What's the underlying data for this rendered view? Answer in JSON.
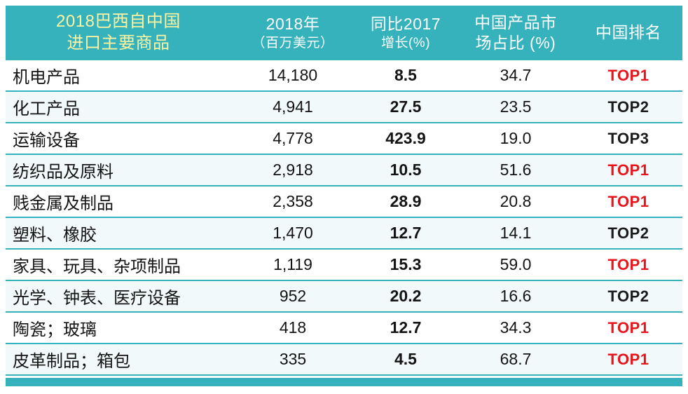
{
  "title": "2018巴西自中国进口主要商品",
  "colors": {
    "teal": "#36b2bd",
    "stripe": "#f1f9fa",
    "header_first_col_text": "#fdf3a0",
    "rank_red": "#e8151c",
    "rank_dark": "#1a1a1a"
  },
  "table": {
    "headers": [
      {
        "line1": "2018巴西自中国",
        "line2": "进口主要商品"
      },
      {
        "line1": "2018年",
        "line2": "（百万美元）"
      },
      {
        "line1": "同比2017",
        "line2": "增长(%)"
      },
      {
        "line1": "中国产品市",
        "line2": "场占比 (%)"
      },
      {
        "line1": "中国排名",
        "line2": ""
      }
    ],
    "rows": [
      {
        "name": "机电产品",
        "value_2018": "14,180",
        "yoy": "8.5",
        "share": "34.7",
        "rank": "TOP1",
        "rank_color": "#e8151c"
      },
      {
        "name": "化工产品",
        "value_2018": "4,941",
        "yoy": "27.5",
        "share": "23.5",
        "rank": "TOP2",
        "rank_color": "#1a1a1a"
      },
      {
        "name": "运输设备",
        "value_2018": "4,778",
        "yoy": "423.9",
        "share": "19.0",
        "rank": "TOP3",
        "rank_color": "#1a1a1a"
      },
      {
        "name": "纺织品及原料",
        "value_2018": "2,918",
        "yoy": "10.5",
        "share": "51.6",
        "rank": "TOP1",
        "rank_color": "#e8151c"
      },
      {
        "name": "贱金属及制品",
        "value_2018": "2,358",
        "yoy": "28.9",
        "share": "20.8",
        "rank": "TOP1",
        "rank_color": "#e8151c"
      },
      {
        "name": "塑料、橡胶",
        "value_2018": "1,470",
        "yoy": "12.7",
        "share": "14.1",
        "rank": "TOP2",
        "rank_color": "#1a1a1a"
      },
      {
        "name": "家具、玩具、杂项制品",
        "value_2018": "1,119",
        "yoy": "15.3",
        "share": "59.0",
        "rank": "TOP1",
        "rank_color": "#e8151c"
      },
      {
        "name": "光学、钟表、医疗设备",
        "value_2018": "952",
        "yoy": "20.2",
        "share": "16.6",
        "rank": "TOP2",
        "rank_color": "#1a1a1a"
      },
      {
        "name": "陶瓷；玻璃",
        "value_2018": "418",
        "yoy": "12.7",
        "share": "34.3",
        "rank": "TOP1",
        "rank_color": "#e8151c"
      },
      {
        "name": "皮革制品；箱包",
        "value_2018": "335",
        "yoy": "4.5",
        "share": "68.7",
        "rank": "TOP1",
        "rank_color": "#e8151c"
      }
    ]
  },
  "chart_data": {
    "type": "table",
    "title": "2018巴西自中国进口主要商品",
    "columns": [
      "2018巴西自中国进口主要商品",
      "2018年（百万美元）",
      "同比2017增长(%)",
      "中国产品市场占比 (%)",
      "中国排名"
    ],
    "rows": [
      [
        "机电产品",
        14180,
        8.5,
        34.7,
        "TOP1"
      ],
      [
        "化工产品",
        4941,
        27.5,
        23.5,
        "TOP2"
      ],
      [
        "运输设备",
        4778,
        423.9,
        19.0,
        "TOP3"
      ],
      [
        "纺织品及原料",
        2918,
        10.5,
        51.6,
        "TOP1"
      ],
      [
        "贱金属及制品",
        2358,
        28.9,
        20.8,
        "TOP1"
      ],
      [
        "塑料、橡胶",
        1470,
        12.7,
        14.1,
        "TOP2"
      ],
      [
        "家具、玩具、杂项制品",
        1119,
        15.3,
        59.0,
        "TOP1"
      ],
      [
        "光学、钟表、医疗设备",
        952,
        20.2,
        16.6,
        "TOP2"
      ],
      [
        "陶瓷；玻璃",
        418,
        12.7,
        34.3,
        "TOP1"
      ],
      [
        "皮革制品；箱包",
        335,
        4.5,
        68.7,
        "TOP1"
      ]
    ],
    "notes": "TOP1 ranks rendered in red, TOP2/TOP3 in black"
  }
}
